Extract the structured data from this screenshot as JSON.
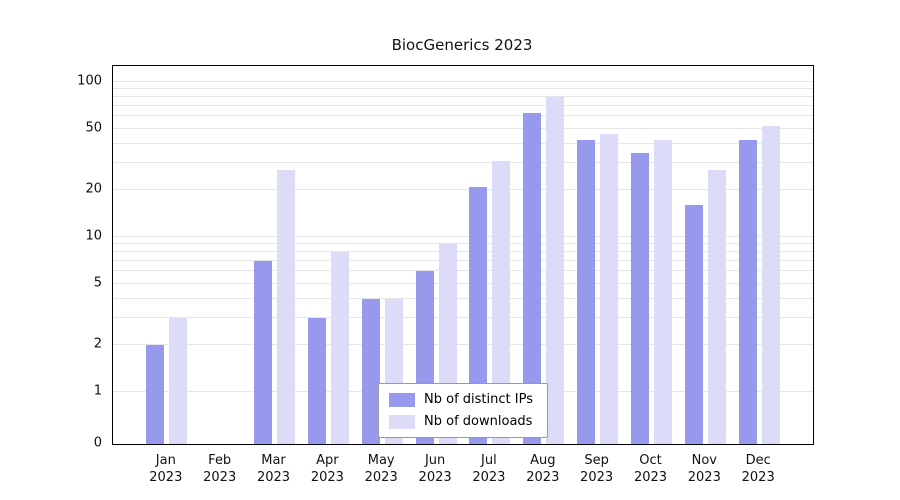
{
  "chart_data": {
    "type": "bar",
    "title": "BiocGenerics 2023",
    "scale": "log",
    "grid": true,
    "legend_position": "lower center",
    "xlabel": "",
    "ylabel": "",
    "months": [
      "Jan",
      "Feb",
      "Mar",
      "Apr",
      "May",
      "Jun",
      "Jul",
      "Aug",
      "Sep",
      "Oct",
      "Nov",
      "Dec"
    ],
    "year_label": "2023",
    "categories": [
      "Jan 2023",
      "Feb 2023",
      "Mar 2023",
      "Apr 2023",
      "May 2023",
      "Jun 2023",
      "Jul 2023",
      "Aug 2023",
      "Sep 2023",
      "Oct 2023",
      "Nov 2023",
      "Dec 2023"
    ],
    "series": [
      {
        "name": "Nb of distinct IPs",
        "color": "#9799ec",
        "values": [
          2,
          0,
          7,
          3,
          4,
          6,
          21,
          63,
          42,
          35,
          16,
          42
        ]
      },
      {
        "name": "Nb of downloads",
        "color": "#dcdcf8",
        "values": [
          3,
          0,
          27,
          8,
          4,
          9,
          31,
          80,
          46,
          42,
          27,
          52
        ]
      }
    ],
    "yticks": [
      0,
      1,
      2,
      5,
      10,
      20,
      50,
      100
    ],
    "gridline_values": [
      1,
      2,
      3,
      4,
      5,
      6,
      7,
      8,
      9,
      10,
      20,
      30,
      40,
      50,
      60,
      70,
      80,
      90,
      100
    ],
    "ylim": [
      0,
      115
    ]
  }
}
